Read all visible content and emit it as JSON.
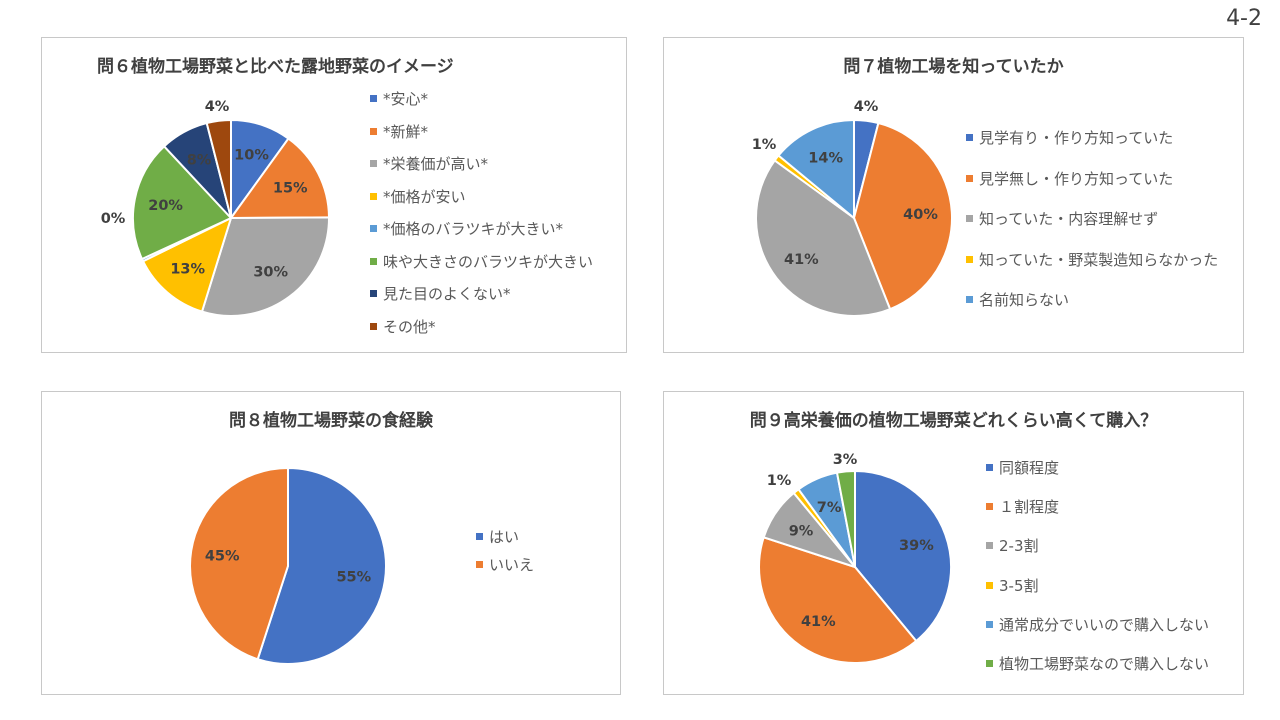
{
  "page_number": "4-2",
  "chart_data": [
    {
      "id": "q6",
      "type": "pie",
      "title": "問６植物工場野菜と比べた露地野菜のイメージ",
      "slices": [
        {
          "name": "*安心*",
          "value": 10,
          "label": "10%",
          "color": "#4472c4"
        },
        {
          "name": "*新鮮*",
          "value": 15,
          "label": "15%",
          "color": "#ed7d31"
        },
        {
          "name": "*栄養価が高い*",
          "value": 30,
          "label": "30%",
          "color": "#a5a5a5"
        },
        {
          "name": "*価格が安い",
          "value": 13,
          "label": "13%",
          "color": "#ffc000"
        },
        {
          "name": "*価格のバラツキが大きい*",
          "value": 0.4,
          "label": "0%",
          "color": "#5b9bd5"
        },
        {
          "name": "味や大きさのバラツキが大きい",
          "value": 20,
          "label": "20%",
          "color": "#70ad47"
        },
        {
          "name": "見た目のよくない*",
          "value": 8,
          "label": "8%",
          "color": "#264478"
        },
        {
          "name": "その他*",
          "value": 4,
          "label": "4%",
          "color": "#9e480e"
        }
      ]
    },
    {
      "id": "q7",
      "type": "pie",
      "title": "問７植物工場を知っていたか",
      "slices": [
        {
          "name": "見学有り・作り方知っていた",
          "value": 4,
          "label": "4%",
          "color": "#4472c4"
        },
        {
          "name": "見学無し・作り方知っていた",
          "value": 40,
          "label": "40%",
          "color": "#ed7d31"
        },
        {
          "name": "知っていた・内容理解せず",
          "value": 41,
          "label": "41%",
          "color": "#a5a5a5"
        },
        {
          "name": "知っていた・野菜製造知らなかった",
          "value": 1,
          "label": "1%",
          "color": "#ffc000"
        },
        {
          "name": "名前知らない",
          "value": 14,
          "label": "14%",
          "color": "#5b9bd5"
        }
      ]
    },
    {
      "id": "q8",
      "type": "pie",
      "title": "問８植物工場野菜の食経験",
      "slices": [
        {
          "name": "はい",
          "value": 55,
          "label": "55%",
          "color": "#4472c4"
        },
        {
          "name": "いいえ",
          "value": 45,
          "label": "45%",
          "color": "#ed7d31"
        }
      ]
    },
    {
      "id": "q9",
      "type": "pie",
      "title": "問９高栄養価の植物工場野菜どれくらい高くて購入？",
      "slices": [
        {
          "name": "同額程度",
          "value": 39,
          "label": "39%",
          "color": "#4472c4"
        },
        {
          "name": "１割程度",
          "value": 41,
          "label": "41%",
          "color": "#ed7d31"
        },
        {
          "name": "2-3割",
          "value": 9,
          "label": "9%",
          "color": "#a5a5a5"
        },
        {
          "name": "3-5割",
          "value": 1,
          "label": "1%",
          "color": "#ffc000"
        },
        {
          "name": "通常成分でいいので購入しない",
          "value": 7,
          "label": "7%",
          "color": "#5b9bd5"
        },
        {
          "name": "植物工場野菜なので購入しない",
          "value": 3,
          "label": "3%",
          "color": "#70ad47"
        }
      ]
    }
  ]
}
